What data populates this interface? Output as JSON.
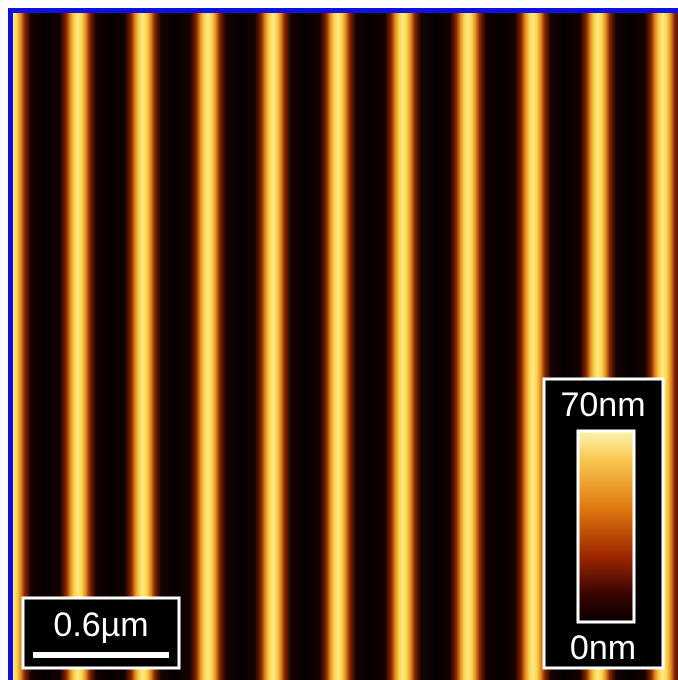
{
  "scale_bar": {
    "label": "0.6µm"
  },
  "color_bar": {
    "max_label": "70nm",
    "min_label": "0nm"
  }
}
